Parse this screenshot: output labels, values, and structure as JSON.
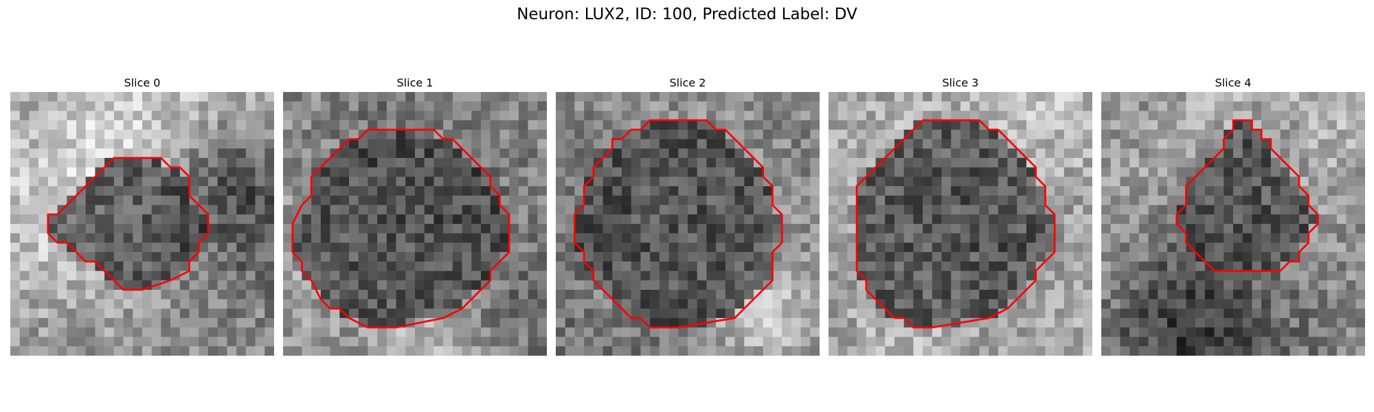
{
  "figure": {
    "title": "Neuron: LUX2, ID: 100, Predicted Label: DV"
  },
  "slices": [
    {
      "title": "Slice 0",
      "contour": [
        [
          14,
          7
        ],
        [
          16,
          7
        ],
        [
          17,
          8
        ],
        [
          18,
          8
        ],
        [
          19,
          9
        ],
        [
          19,
          11
        ],
        [
          20,
          12
        ],
        [
          21,
          13
        ],
        [
          21,
          15
        ],
        [
          20,
          16
        ],
        [
          20,
          17
        ],
        [
          19,
          18
        ],
        [
          19,
          19
        ],
        [
          17,
          20
        ],
        [
          14,
          21
        ],
        [
          12,
          21
        ],
        [
          11,
          20
        ],
        [
          10,
          19
        ],
        [
          9,
          18
        ],
        [
          8,
          18
        ],
        [
          7,
          17
        ],
        [
          6,
          16
        ],
        [
          5,
          16
        ],
        [
          4,
          15
        ],
        [
          4,
          13
        ],
        [
          5,
          13
        ],
        [
          6,
          12
        ],
        [
          7,
          11
        ],
        [
          8,
          10
        ],
        [
          9,
          9
        ],
        [
          10,
          8
        ],
        [
          11,
          7
        ]
      ]
    },
    {
      "title": "Slice 1",
      "contour": [
        [
          10,
          4
        ],
        [
          16,
          4
        ],
        [
          17,
          5
        ],
        [
          18,
          5
        ],
        [
          19,
          6
        ],
        [
          20,
          7
        ],
        [
          21,
          8
        ],
        [
          22,
          9
        ],
        [
          22,
          10
        ],
        [
          23,
          11
        ],
        [
          23,
          12
        ],
        [
          24,
          13
        ],
        [
          24,
          14
        ],
        [
          24,
          17
        ],
        [
          23,
          18
        ],
        [
          22,
          19
        ],
        [
          22,
          20
        ],
        [
          21,
          21
        ],
        [
          20,
          22
        ],
        [
          19,
          23
        ],
        [
          17,
          24
        ],
        [
          12,
          25
        ],
        [
          9,
          25
        ],
        [
          7,
          24
        ],
        [
          6,
          23
        ],
        [
          5,
          23
        ],
        [
          4,
          22
        ],
        [
          3,
          20
        ],
        [
          2,
          19
        ],
        [
          2,
          18
        ],
        [
          1,
          17
        ],
        [
          1,
          14
        ],
        [
          2,
          12
        ],
        [
          3,
          11
        ],
        [
          3,
          9
        ],
        [
          4,
          8
        ],
        [
          5,
          7
        ],
        [
          6,
          6
        ],
        [
          7,
          5
        ],
        [
          8,
          5
        ],
        [
          9,
          4
        ]
      ]
    },
    {
      "title": "Slice 2",
      "contour": [
        [
          10,
          3
        ],
        [
          16,
          3
        ],
        [
          17,
          4
        ],
        [
          18,
          4
        ],
        [
          19,
          5
        ],
        [
          20,
          6
        ],
        [
          21,
          7
        ],
        [
          22,
          8
        ],
        [
          22,
          9
        ],
        [
          23,
          10
        ],
        [
          23,
          12
        ],
        [
          24,
          13
        ],
        [
          24,
          14
        ],
        [
          24,
          16
        ],
        [
          23,
          17
        ],
        [
          23,
          20
        ],
        [
          22,
          21
        ],
        [
          21,
          22
        ],
        [
          20,
          23
        ],
        [
          19,
          24
        ],
        [
          13,
          25
        ],
        [
          10,
          25
        ],
        [
          9,
          24
        ],
        [
          8,
          24
        ],
        [
          7,
          23
        ],
        [
          6,
          22
        ],
        [
          5,
          21
        ],
        [
          4,
          20
        ],
        [
          4,
          19
        ],
        [
          3,
          18
        ],
        [
          3,
          17
        ],
        [
          2,
          16
        ],
        [
          2,
          13
        ],
        [
          3,
          12
        ],
        [
          3,
          10
        ],
        [
          4,
          9
        ],
        [
          4,
          8
        ],
        [
          5,
          7
        ],
        [
          6,
          6
        ],
        [
          6,
          5
        ],
        [
          7,
          5
        ],
        [
          8,
          4
        ],
        [
          9,
          4
        ]
      ]
    },
    {
      "title": "Slice 3",
      "contour": [
        [
          10,
          3
        ],
        [
          16,
          3
        ],
        [
          17,
          4
        ],
        [
          18,
          4
        ],
        [
          19,
          5
        ],
        [
          20,
          6
        ],
        [
          21,
          7
        ],
        [
          22,
          8
        ],
        [
          22,
          9
        ],
        [
          23,
          10
        ],
        [
          23,
          12
        ],
        [
          24,
          13
        ],
        [
          24,
          14
        ],
        [
          24,
          17
        ],
        [
          23,
          18
        ],
        [
          22,
          19
        ],
        [
          22,
          20
        ],
        [
          21,
          21
        ],
        [
          20,
          22
        ],
        [
          19,
          23
        ],
        [
          17,
          24
        ],
        [
          11,
          25
        ],
        [
          9,
          25
        ],
        [
          8,
          24
        ],
        [
          7,
          24
        ],
        [
          6,
          23
        ],
        [
          5,
          22
        ],
        [
          4,
          21
        ],
        [
          4,
          20
        ],
        [
          3,
          19
        ],
        [
          3,
          18
        ],
        [
          3,
          15
        ],
        [
          3,
          10
        ],
        [
          4,
          9
        ],
        [
          5,
          8
        ],
        [
          6,
          7
        ],
        [
          7,
          6
        ],
        [
          8,
          5
        ],
        [
          9,
          4
        ]
      ]
    },
    {
      "title": "Slice 4",
      "contour": [
        [
          14,
          3
        ],
        [
          16,
          3
        ],
        [
          16,
          4
        ],
        [
          17,
          4
        ],
        [
          17,
          5
        ],
        [
          18,
          5
        ],
        [
          18,
          6
        ],
        [
          19,
          7
        ],
        [
          20,
          8
        ],
        [
          21,
          9
        ],
        [
          21,
          10
        ],
        [
          22,
          11
        ],
        [
          22,
          12
        ],
        [
          23,
          13
        ],
        [
          23,
          14
        ],
        [
          22,
          15
        ],
        [
          22,
          16
        ],
        [
          21,
          17
        ],
        [
          21,
          18
        ],
        [
          20,
          18
        ],
        [
          19,
          19
        ],
        [
          17,
          19
        ],
        [
          12,
          19
        ],
        [
          11,
          18
        ],
        [
          10,
          17
        ],
        [
          9,
          16
        ],
        [
          9,
          15
        ],
        [
          8,
          14
        ],
        [
          8,
          13
        ],
        [
          9,
          12
        ],
        [
          9,
          10
        ],
        [
          10,
          9
        ],
        [
          11,
          8
        ],
        [
          12,
          7
        ],
        [
          13,
          6
        ],
        [
          13,
          5
        ],
        [
          14,
          4
        ]
      ]
    }
  ]
}
